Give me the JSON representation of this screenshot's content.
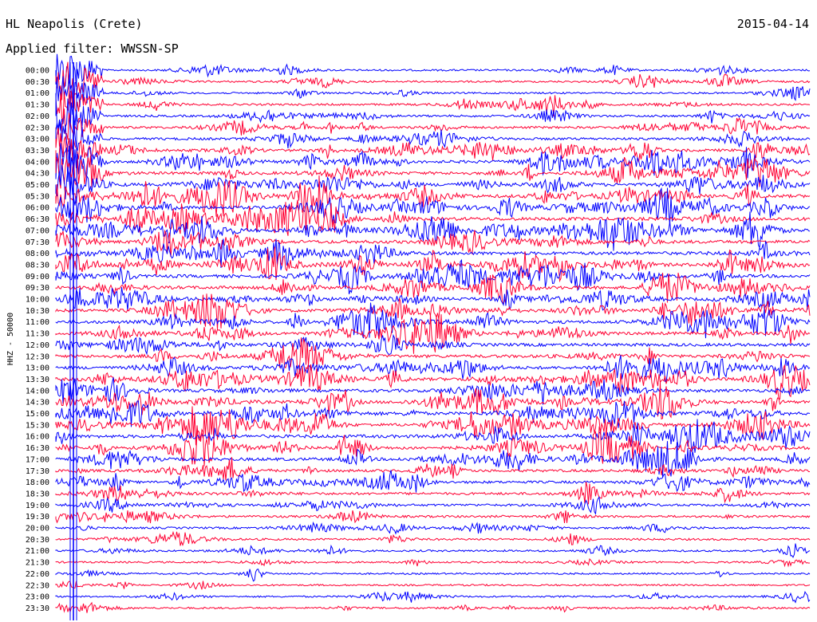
{
  "header": {
    "station": "HL Neapolis (Crete)",
    "date": "2015-04-14",
    "filter": "Applied filter: WWSSN-SP"
  },
  "chart_data": {
    "type": "line",
    "title": "HL Neapolis (Crete)",
    "subtitle": "Applied filter: WWSSN-SP",
    "xlabel": "",
    "ylabel": "HHZ - 50000",
    "row_labels": [
      "00:00",
      "00:30",
      "01:00",
      "01:30",
      "02:00",
      "02:30",
      "03:00",
      "03:30",
      "04:00",
      "04:30",
      "05:00",
      "05:30",
      "06:00",
      "06:30",
      "07:00",
      "07:30",
      "08:00",
      "08:30",
      "09:00",
      "09:30",
      "10:00",
      "10:30",
      "11:00",
      "11:30",
      "12:00",
      "12:30",
      "13:00",
      "13:30",
      "14:00",
      "14:30",
      "15:00",
      "15:30",
      "16:00",
      "16:30",
      "17:00",
      "17:30",
      "18:00",
      "18:30",
      "19:00",
      "19:30",
      "20:00",
      "20:30",
      "21:00",
      "21:30",
      "22:00",
      "22:30",
      "23:00",
      "23:30"
    ],
    "row_minutes": 30,
    "series": [
      {
        "color": "#0000ff"
      },
      {
        "color": "#ff0033"
      }
    ],
    "activity_by_row": [
      0.25,
      0.3,
      0.25,
      0.35,
      0.45,
      0.5,
      0.6,
      0.7,
      0.8,
      0.85,
      0.9,
      0.95,
      1.0,
      1.0,
      1.0,
      1.0,
      1.0,
      1.0,
      0.95,
      0.95,
      0.95,
      0.95,
      0.95,
      0.9,
      0.9,
      0.9,
      0.9,
      0.9,
      0.9,
      0.85,
      0.85,
      0.9,
      0.95,
      0.95,
      0.9,
      0.7,
      0.65,
      0.6,
      0.5,
      0.45,
      0.35,
      0.35,
      0.3,
      0.25,
      0.2,
      0.2,
      0.2,
      0.25
    ],
    "main_event": {
      "start_row": 0,
      "start_minute": 0.3,
      "peak_rows_affected": 16
    },
    "grid": false,
    "legend": "none"
  }
}
